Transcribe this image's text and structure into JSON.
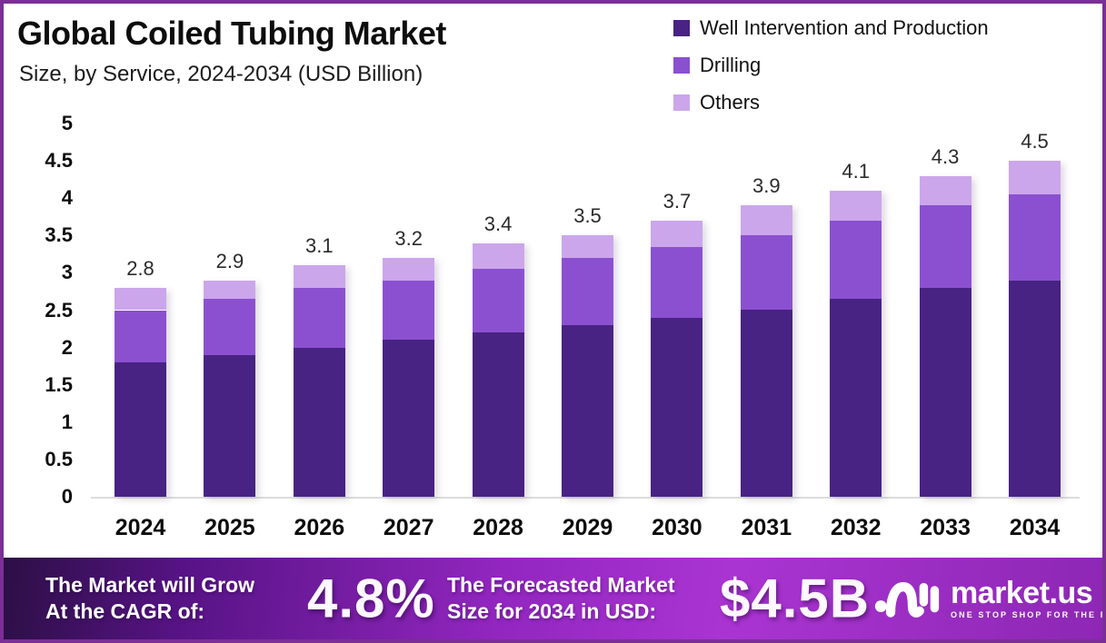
{
  "header": {
    "title": "Global Coiled Tubing Market",
    "subtitle": "Size, by Service, 2024-2034 (USD Billion)"
  },
  "legend": [
    {
      "label": "Well Intervention and Production",
      "color": "#482383"
    },
    {
      "label": "Drilling",
      "color": "#8B50D0"
    },
    {
      "label": "Others",
      "color": "#CBA6EB"
    }
  ],
  "chart_data": {
    "type": "bar",
    "stacked": true,
    "title": "Global Coiled Tubing Market Size, by Service, 2024-2034 (USD Billion)",
    "categories": [
      "2024",
      "2025",
      "2026",
      "2027",
      "2028",
      "2029",
      "2030",
      "2031",
      "2032",
      "2033",
      "2034"
    ],
    "series": [
      {
        "name": "Well Intervention and Production",
        "color": "#482383",
        "values": [
          1.8,
          1.9,
          2.0,
          2.1,
          2.2,
          2.3,
          2.4,
          2.5,
          2.65,
          2.8,
          2.9
        ]
      },
      {
        "name": "Drilling",
        "color": "#8B50D0",
        "values": [
          0.7,
          0.75,
          0.8,
          0.8,
          0.85,
          0.9,
          0.95,
          1.0,
          1.05,
          1.1,
          1.15
        ]
      },
      {
        "name": "Others",
        "color": "#CBA6EB",
        "values": [
          0.3,
          0.25,
          0.3,
          0.3,
          0.35,
          0.3,
          0.35,
          0.4,
          0.4,
          0.4,
          0.45
        ]
      }
    ],
    "totals": [
      2.8,
      2.9,
      3.1,
      3.2,
      3.4,
      3.5,
      3.7,
      3.9,
      4.1,
      4.3,
      4.5
    ],
    "total_labels": [
      "2.8",
      "2.9",
      "3.1",
      "3.2",
      "3.4",
      "3.5",
      "3.7",
      "3.9",
      "4.1",
      "4.3",
      "4.5"
    ],
    "y_ticks": [
      "5",
      "4.5",
      "4",
      "3.5",
      "3",
      "2.5",
      "2",
      "1.5",
      "1",
      "0.5",
      "0"
    ],
    "ylim": [
      0,
      5
    ],
    "xlabel": "",
    "ylabel": "",
    "grid": false,
    "legend_position": "top-right"
  },
  "footer": {
    "cagr_label_line1": "The Market will Grow",
    "cagr_label_line2": "At the CAGR of:",
    "cagr_value": "4.8%",
    "forecast_label_line1": "The Forecasted Market",
    "forecast_label_line2": "Size for 2034 in USD:",
    "forecast_value": "$4.5B",
    "brand": {
      "name": "market.us",
      "tagline": "ONE STOP SHOP FOR THE REPORTS"
    }
  },
  "colors": {
    "frame_border": "#7b2f96",
    "banner_gradient_start": "#2c0f45",
    "banner_gradient_mid": "#9226bf",
    "banner_gradient_end": "#8d27b4",
    "baseline": "#dcdcdc",
    "text": "#0d0d0d"
  }
}
